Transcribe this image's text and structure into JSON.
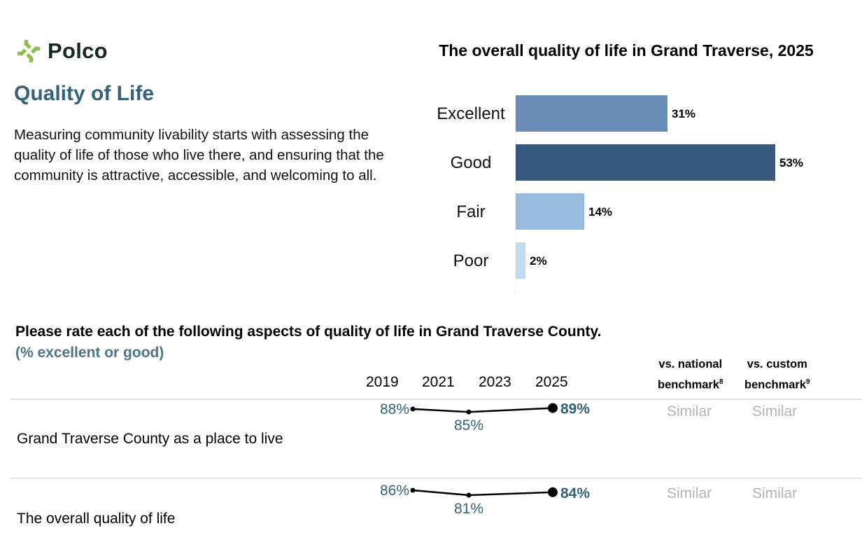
{
  "brand": {
    "name": "Polco",
    "logo_icon": "polco-logo-icon",
    "logo_color": "#8fbc4f",
    "text_color": "#16291f"
  },
  "section": {
    "title": "Quality of Life",
    "intro": "Measuring community livability starts with assessing the quality of life of those who live there, and ensuring that the community is attractive, accessible, and welcoming to all."
  },
  "question": {
    "title": "Please rate each of the following aspects of quality of life in Grand Traverse County.",
    "subtitle": "(% excellent or good)",
    "years": [
      "2019",
      "2021",
      "2023",
      "2025"
    ],
    "bench_national": {
      "line1": "vs. national",
      "line2": "benchmark",
      "sup": "8"
    },
    "bench_custom": {
      "line1": "vs. custom",
      "line2": "benchmark",
      "sup": "9"
    },
    "rows": [
      {
        "label": "Grand Traverse County as a place to live",
        "national": "Similar",
        "custom": "Similar"
      },
      {
        "label": "The overall quality of life",
        "national": "Similar",
        "custom": "Similar"
      }
    ]
  },
  "colors": {
    "accent": "#336378",
    "value_text": "#336378",
    "similar_text": "#b9b1ad"
  },
  "chart_data": [
    {
      "type": "bar",
      "orientation": "horizontal",
      "title": "The overall quality of life in Grand Traverse, 2025",
      "categories": [
        "Excellent",
        "Good",
        "Fair",
        "Poor"
      ],
      "values": [
        31,
        53,
        14,
        2
      ],
      "labels": [
        "31%",
        "53%",
        "14%",
        "2%"
      ],
      "colors": [
        "#6a8db7",
        "#37597f",
        "#97bbdc",
        "#c2dbef"
      ],
      "xlim": [
        0,
        53
      ],
      "grid": false,
      "xlabel": "",
      "ylabel": ""
    },
    {
      "type": "line",
      "title": "Please rate each of the following aspects of quality of life in Grand Traverse County. (% excellent or good)",
      "x": [
        "2019",
        "2021",
        "2023",
        "2025"
      ],
      "series": [
        {
          "name": "Grand Traverse County as a place to live",
          "values": [
            88,
            85,
            null,
            89
          ],
          "labels": [
            "88%",
            "85%",
            null,
            "89%"
          ]
        },
        {
          "name": "The overall quality of life",
          "values": [
            86,
            81,
            null,
            84
          ],
          "labels": [
            "86%",
            "81%",
            null,
            "84%"
          ]
        }
      ],
      "grid": false
    }
  ]
}
